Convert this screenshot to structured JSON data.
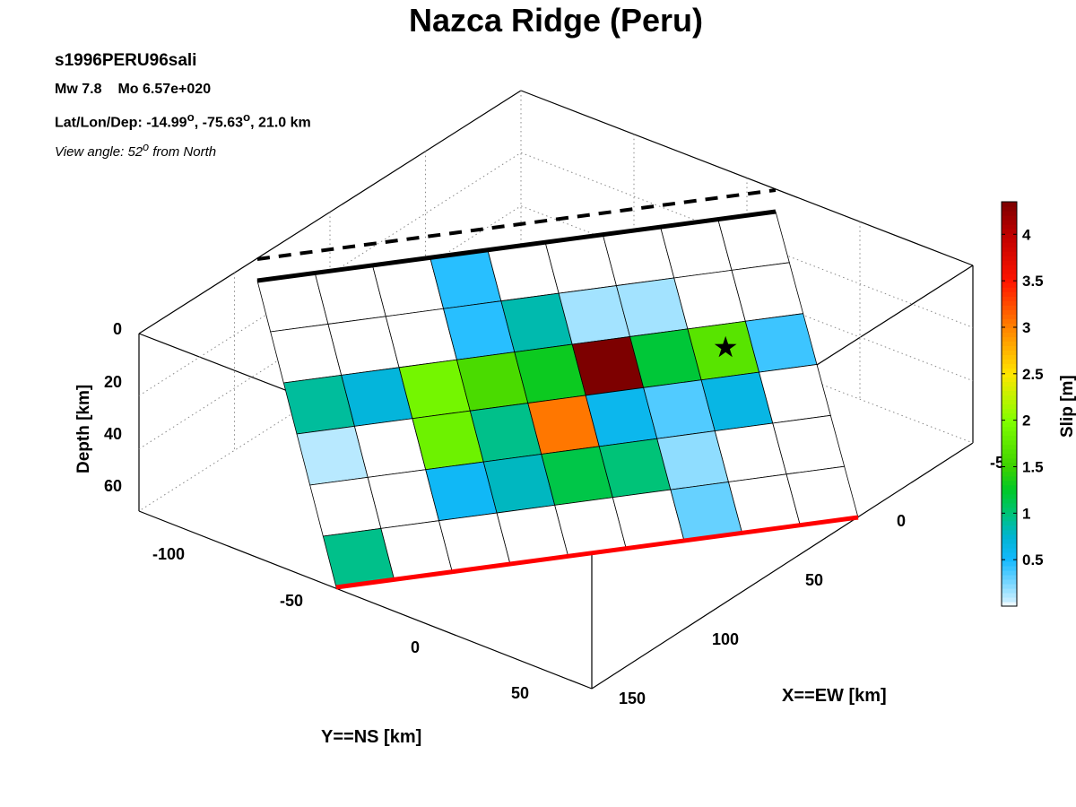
{
  "chart_data": {
    "type": "heatmap",
    "title": "Nazca Ridge (Peru)",
    "event_id": "s1996PERU96sali",
    "magnitude": "Mw 7.8",
    "moment": "Mo 6.57e+020",
    "location_prefix": "Lat/Lon/Dep: -14.99",
    "location_lon": ", -75.63",
    "location_dep": ", 21.0 km",
    "view_prefix": "View angle:  52",
    "view_suffix": " from North",
    "xlabel": "X==EW [km]",
    "ylabel": "Y==NS [km]",
    "zlabel": "Depth [km]",
    "x_ticks": [
      "0",
      "50",
      "100",
      "150"
    ],
    "y_ticks": [
      "-100",
      "-50",
      "0",
      "50"
    ],
    "z_ticks": [
      "0",
      "20",
      "40",
      "60"
    ],
    "colorbar": {
      "label": "Slip [m]",
      "range": [
        0,
        4.35
      ],
      "ticks": [
        "0.5",
        "1",
        "1.5",
        "2",
        "2.5",
        "3",
        "3.5",
        "4"
      ]
    },
    "grid_columns": 9,
    "grid_rows": 6,
    "slip": [
      [
        0.0,
        0.0,
        0.0,
        0.45,
        0.0,
        0.0,
        0.0,
        0.0,
        0.0
      ],
      [
        0.0,
        0.0,
        0.0,
        0.45,
        0.85,
        0.15,
        0.15,
        0.0,
        0.0
      ],
      [
        0.9,
        0.7,
        1.9,
        1.6,
        1.3,
        4.35,
        1.2,
        1.7,
        0.4
      ],
      [
        0.1,
        0.0,
        1.85,
        0.95,
        3.05,
        0.6,
        0.35,
        0.65,
        0.0
      ],
      [
        0.0,
        0.0,
        0.55,
        0.8,
        1.15,
        1.0,
        0.2,
        0.0,
        0.0
      ],
      [
        0.95,
        0.0,
        0.0,
        0.0,
        0.0,
        0.0,
        0.3,
        0.0,
        0.0
      ]
    ],
    "hypocenter": {
      "row": 2,
      "col": 7
    },
    "fault_trace_color": "#ff0000",
    "grid": true
  }
}
